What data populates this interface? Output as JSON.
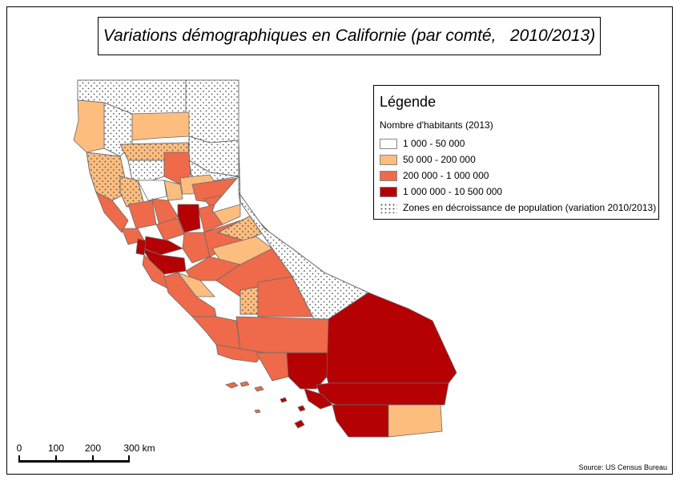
{
  "title": "Variations démographiques en Californie (par comté,   2010/2013)",
  "legend": {
    "title": "Légende",
    "subtitle": "Nombre d'habitants (2013)",
    "classes": [
      {
        "label": "1 000 - 50 000",
        "color": "#ffffff"
      },
      {
        "label": "50 000 - 200 000",
        "color": "#fdbd7e"
      },
      {
        "label": "200 000 - 1 000 000",
        "color": "#ee6a4a"
      },
      {
        "label": "1 000 000 - 10 500 000",
        "color": "#b50004"
      }
    ],
    "decline_label": "Zones en décroissance de population (variation 2010/2013)"
  },
  "scale": {
    "labels": [
      "0",
      "100",
      "200",
      "300 km"
    ]
  },
  "source": "Source: US Census Bureau"
}
